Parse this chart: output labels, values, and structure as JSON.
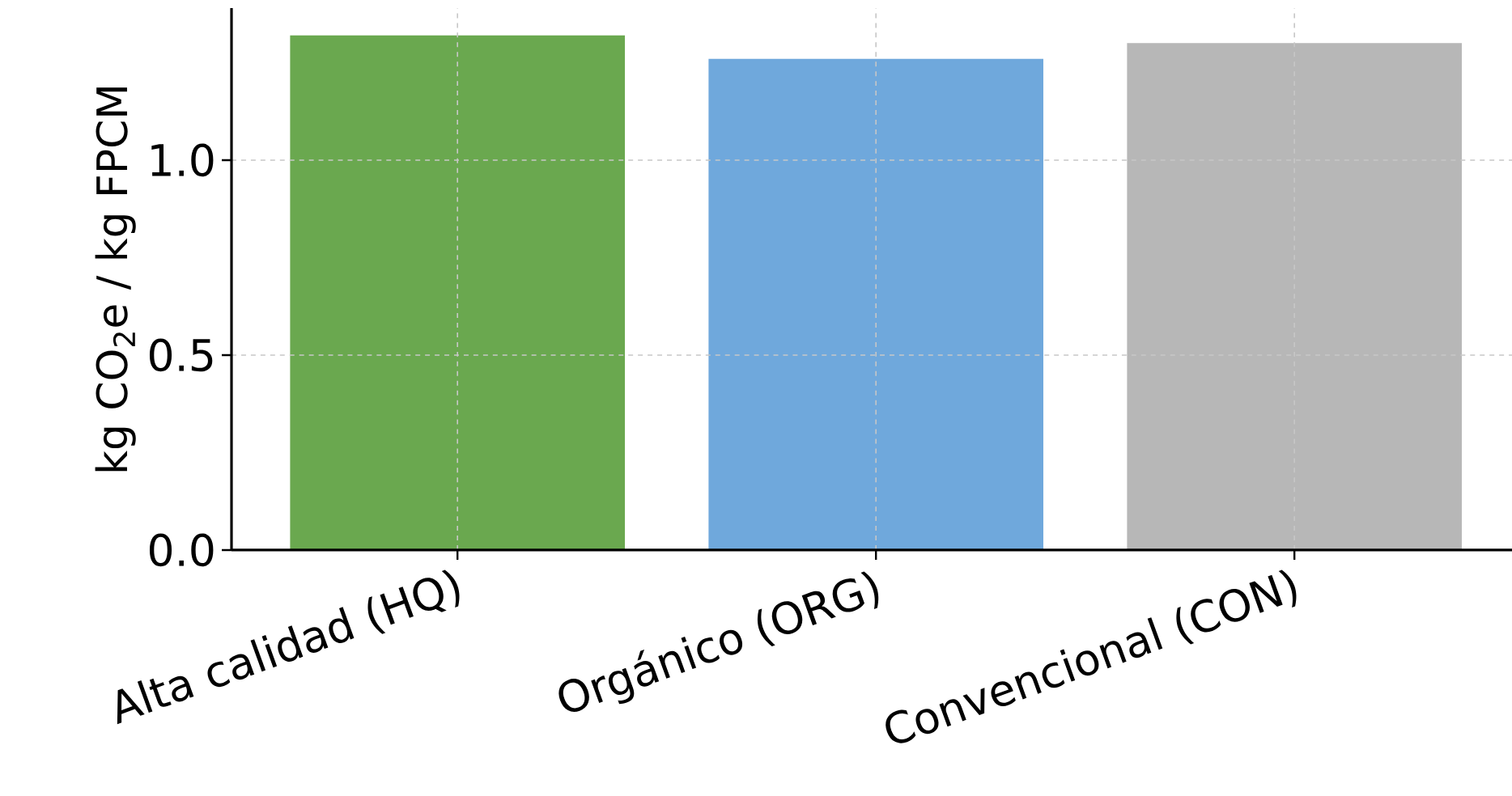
{
  "chart_data": {
    "type": "bar",
    "ylabel": "kg CO$_{2}$e / kg FPCM",
    "categories": [
      "Alta calidad (HQ)",
      "Orgánico (ORG)",
      "Convencional (CON)"
    ],
    "values": [
      1.32,
      1.26,
      1.3
    ],
    "colors": [
      "#6aa84f",
      "#6fa8dc",
      "#b7b7b7"
    ],
    "ylim": [
      0,
      1.39
    ],
    "yticks": [
      {
        "value": 0,
        "label": "0.0"
      },
      0.5,
      {
        "value": 1,
        "label": "1.0"
      }
    ],
    "grid": true
  }
}
